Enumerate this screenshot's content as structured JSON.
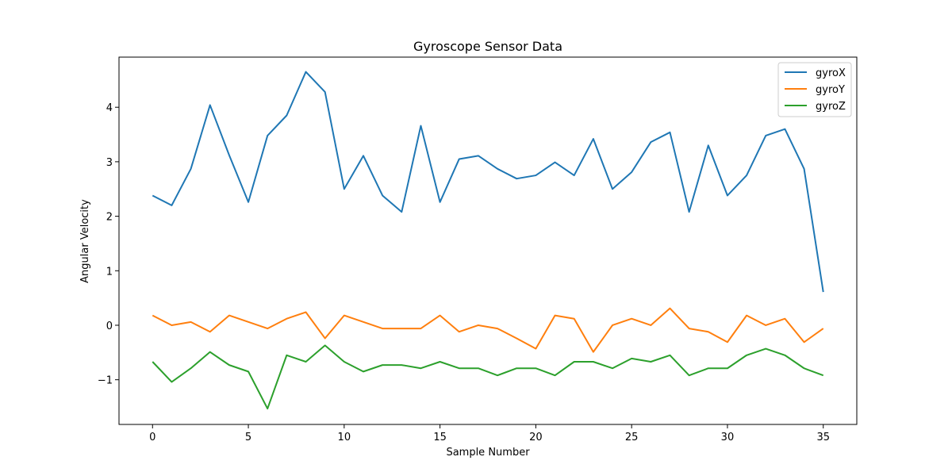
{
  "chart_data": {
    "type": "line",
    "title": "Gyroscope Sensor Data",
    "xlabel": "Sample Number",
    "ylabel": "Angular Velocity",
    "xlim": [
      -1.75,
      36.75
    ],
    "ylim": [
      -1.82,
      4.92
    ],
    "xticks": [
      0,
      5,
      10,
      15,
      20,
      25,
      30,
      35
    ],
    "yticks": [
      -1,
      0,
      1,
      2,
      3,
      4
    ],
    "grid": false,
    "legend_position": "top-right",
    "x": [
      0,
      1,
      2,
      3,
      4,
      5,
      6,
      7,
      8,
      9,
      10,
      11,
      12,
      13,
      14,
      15,
      16,
      17,
      18,
      19,
      20,
      21,
      22,
      23,
      24,
      25,
      26,
      27,
      28,
      29,
      30,
      31,
      32,
      33,
      34,
      35
    ],
    "series": [
      {
        "name": "gyroX",
        "color": "#1f77b4",
        "values": [
          2.38,
          2.2,
          2.87,
          4.04,
          3.12,
          2.26,
          3.48,
          3.85,
          4.65,
          4.28,
          2.5,
          3.11,
          2.38,
          2.08,
          3.66,
          2.26,
          3.05,
          3.11,
          2.87,
          2.69,
          2.75,
          2.99,
          2.75,
          3.42,
          2.5,
          2.81,
          3.36,
          3.54,
          2.08,
          3.3,
          2.38,
          2.75,
          3.48,
          3.6,
          2.87,
          0.61
        ]
      },
      {
        "name": "gyroY",
        "color": "#ff7f0e",
        "values": [
          0.18,
          0.0,
          0.06,
          -0.12,
          0.18,
          0.06,
          -0.06,
          0.12,
          0.24,
          -0.24,
          0.18,
          0.06,
          -0.06,
          -0.06,
          -0.06,
          0.18,
          -0.12,
          0.0,
          -0.06,
          -0.24,
          -0.43,
          0.18,
          0.12,
          -0.49,
          0.0,
          0.12,
          0.0,
          0.31,
          -0.06,
          -0.12,
          -0.31,
          0.18,
          0.0,
          0.12,
          -0.31,
          -0.06
        ]
      },
      {
        "name": "gyroZ",
        "color": "#2ca02c",
        "values": [
          -0.67,
          -1.04,
          -0.79,
          -0.49,
          -0.73,
          -0.85,
          -1.53,
          -0.55,
          -0.67,
          -0.37,
          -0.67,
          -0.85,
          -0.73,
          -0.73,
          -0.79,
          -0.67,
          -0.79,
          -0.79,
          -0.92,
          -0.79,
          -0.79,
          -0.92,
          -0.67,
          -0.67,
          -0.79,
          -0.61,
          -0.67,
          -0.55,
          -0.92,
          -0.79,
          -0.79,
          -0.55,
          -0.43,
          -0.55,
          -0.79,
          -0.92
        ]
      }
    ]
  }
}
